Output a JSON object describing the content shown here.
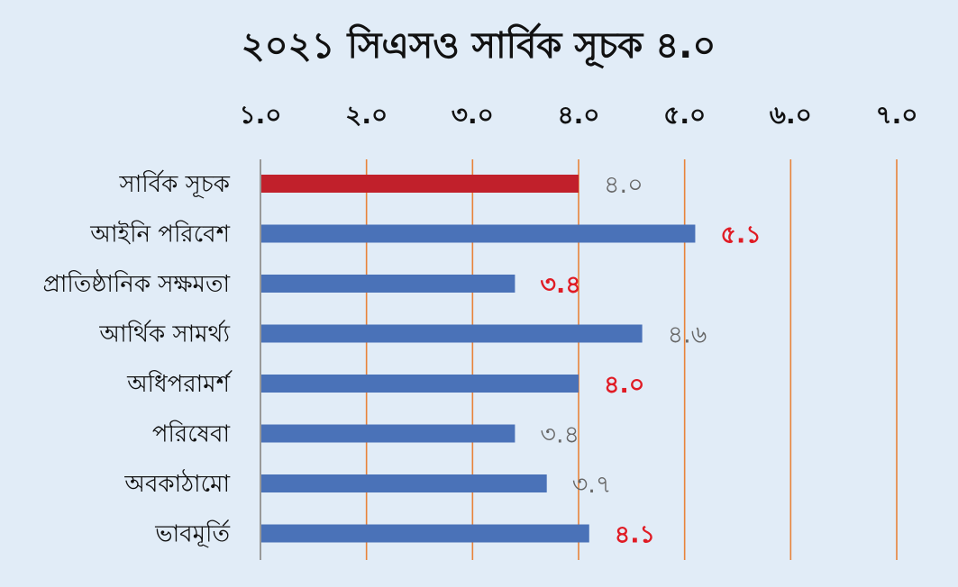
{
  "chart_data": {
    "type": "bar",
    "orientation": "horizontal",
    "title": "২০২১ সিএসও সার্বিক সূচক ৪.০",
    "xlim": [
      1.0,
      7.0
    ],
    "x_ticks": [
      1.0,
      2.0,
      3.0,
      4.0,
      5.0,
      6.0,
      7.0
    ],
    "x_tick_labels": [
      "১.০",
      "২.০",
      "৩.০",
      "৪.০",
      "৫.০",
      "৬.০",
      "৭.০"
    ],
    "x_axis_position": "top",
    "grid": true,
    "categories": [
      "সার্বিক সূচক",
      "আইনি পরিবেশ",
      "প্রাতিষ্ঠানিক সক্ষমতা",
      "আর্থিক সামর্থ্য",
      "অধিপরামর্শ",
      "পরিষেবা",
      "অবকাঠামো",
      "ভাবমূর্তি"
    ],
    "values": [
      4.0,
      5.1,
      3.4,
      4.6,
      4.0,
      3.4,
      3.7,
      4.1
    ],
    "value_labels": [
      "৪.০",
      "৫.১",
      "৩.৪",
      "৪.৬",
      "৪.০",
      "৩.৪",
      "৩.৭",
      "৪.১"
    ],
    "bar_colors": [
      "#c1202b",
      "#4a72b8",
      "#4a72b8",
      "#4a72b8",
      "#4a72b8",
      "#4a72b8",
      "#4a72b8",
      "#4a72b8"
    ],
    "label_colors": [
      "#666666",
      "#e01b24",
      "#e01b24",
      "#666666",
      "#e01b24",
      "#666666",
      "#666666",
      "#e01b24"
    ],
    "grid_color": "#e8833a",
    "axis_color": "#999999",
    "background": "#e1ecf7"
  }
}
